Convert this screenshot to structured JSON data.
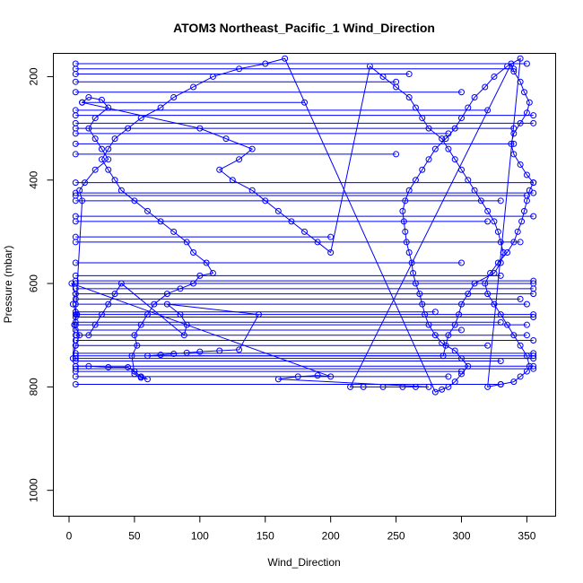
{
  "chart_data": {
    "type": "scatter",
    "title": "ATOM3 Northeast_Pacific_1 Wind_Direction",
    "xlabel": "Wind_Direction",
    "ylabel": "Pressure (mbar)",
    "xlim": [
      -12,
      372
    ],
    "ylim": [
      1050,
      155
    ],
    "y_reversed": true,
    "xticks": [
      0,
      50,
      100,
      150,
      200,
      250,
      300,
      350
    ],
    "yticks": [
      200,
      400,
      600,
      800,
      1000
    ],
    "grid": false,
    "legend": "none",
    "color": "#0000ff",
    "marker": "open-circle",
    "connected": true,
    "series": [
      {
        "values_note_omitted": "",
        "points": [
          [
            5,
            760
          ],
          [
            15,
            760
          ],
          [
            30,
            762
          ],
          [
            45,
            762
          ],
          [
            50,
            770
          ],
          [
            55,
            780
          ],
          [
            60,
            785
          ],
          [
            55,
            782
          ],
          [
            50,
            775
          ],
          [
            48,
            740
          ],
          [
            52,
            720
          ],
          [
            50,
            700
          ],
          [
            55,
            680
          ],
          [
            60,
            660
          ],
          [
            65,
            640
          ],
          [
            75,
            620
          ],
          [
            85,
            610
          ],
          [
            95,
            600
          ],
          [
            100,
            585
          ],
          [
            110,
            580
          ],
          [
            105,
            560
          ],
          [
            95,
            540
          ],
          [
            90,
            520
          ],
          [
            80,
            500
          ],
          [
            70,
            480
          ],
          [
            60,
            460
          ],
          [
            50,
            440
          ],
          [
            40,
            420
          ],
          [
            35,
            400
          ],
          [
            30,
            380
          ],
          [
            25,
            360
          ],
          [
            30,
            340
          ],
          [
            35,
            320
          ],
          [
            45,
            300
          ],
          [
            55,
            280
          ],
          [
            70,
            260
          ],
          [
            80,
            240
          ],
          [
            95,
            220
          ],
          [
            110,
            200
          ],
          [
            130,
            185
          ],
          [
            150,
            175
          ],
          [
            165,
            165
          ],
          [
            280,
            810
          ],
          [
            285,
            805
          ],
          [
            290,
            800
          ],
          [
            295,
            790
          ],
          [
            300,
            775
          ],
          [
            305,
            760
          ],
          [
            300,
            745
          ],
          [
            295,
            730
          ],
          [
            285,
            715
          ],
          [
            280,
            700
          ],
          [
            275,
            680
          ],
          [
            272,
            660
          ],
          [
            270,
            640
          ],
          [
            268,
            620
          ],
          [
            265,
            600
          ],
          [
            263,
            580
          ],
          [
            262,
            560
          ],
          [
            260,
            540
          ],
          [
            258,
            520
          ],
          [
            257,
            500
          ],
          [
            256,
            480
          ],
          [
            255,
            460
          ],
          [
            257,
            440
          ],
          [
            260,
            420
          ],
          [
            265,
            400
          ],
          [
            270,
            380
          ],
          [
            275,
            360
          ],
          [
            280,
            340
          ],
          [
            288,
            320
          ],
          [
            295,
            300
          ],
          [
            300,
            280
          ],
          [
            305,
            260
          ],
          [
            310,
            240
          ],
          [
            318,
            220
          ],
          [
            325,
            200
          ],
          [
            335,
            180
          ],
          [
            345,
            165
          ],
          [
            320,
            800
          ],
          [
            330,
            795
          ],
          [
            340,
            790
          ],
          [
            345,
            780
          ],
          [
            350,
            770
          ],
          [
            352,
            760
          ],
          [
            350,
            740
          ],
          [
            345,
            720
          ],
          [
            340,
            700
          ],
          [
            335,
            680
          ],
          [
            330,
            660
          ],
          [
            325,
            640
          ],
          [
            320,
            620
          ],
          [
            318,
            600
          ],
          [
            322,
            580
          ],
          [
            328,
            560
          ],
          [
            335,
            540
          ],
          [
            340,
            520
          ],
          [
            343,
            500
          ],
          [
            346,
            480
          ],
          [
            348,
            460
          ],
          [
            350,
            440
          ],
          [
            352,
            420
          ],
          [
            355,
            405
          ],
          [
            350,
            390
          ],
          [
            345,
            370
          ],
          [
            340,
            350
          ],
          [
            338,
            330
          ],
          [
            340,
            310
          ],
          [
            345,
            290
          ],
          [
            350,
            270
          ],
          [
            352,
            250
          ],
          [
            348,
            230
          ],
          [
            345,
            210
          ],
          [
            340,
            190
          ],
          [
            338,
            175
          ],
          [
            215,
            800
          ],
          [
            225,
            800
          ],
          [
            240,
            800
          ],
          [
            255,
            800
          ],
          [
            265,
            800
          ],
          [
            275,
            800
          ],
          [
            160,
            785
          ],
          [
            175,
            780
          ],
          [
            190,
            778
          ],
          [
            200,
            780
          ],
          [
            2,
            600
          ],
          [
            5,
            620
          ],
          [
            3,
            640
          ],
          [
            6,
            660
          ],
          [
            4,
            680
          ],
          [
            8,
            700
          ],
          [
            5,
            720
          ],
          [
            3,
            745
          ],
          [
            10,
            440
          ],
          [
            8,
            420
          ],
          [
            12,
            405
          ],
          [
            20,
            380
          ],
          [
            30,
            360
          ],
          [
            25,
            340
          ],
          [
            20,
            320
          ],
          [
            15,
            300
          ],
          [
            20,
            280
          ],
          [
            30,
            260
          ],
          [
            25,
            245
          ],
          [
            15,
            240
          ],
          [
            10,
            250
          ],
          [
            100,
            300
          ],
          [
            120,
            320
          ],
          [
            140,
            340
          ],
          [
            130,
            360
          ],
          [
            115,
            380
          ],
          [
            125,
            400
          ],
          [
            140,
            420
          ],
          [
            150,
            440
          ],
          [
            160,
            460
          ],
          [
            170,
            480
          ],
          [
            180,
            500
          ],
          [
            190,
            520
          ],
          [
            200,
            540
          ],
          [
            230,
            180
          ],
          [
            240,
            200
          ],
          [
            250,
            220
          ],
          [
            260,
            240
          ],
          [
            265,
            260
          ],
          [
            270,
            280
          ],
          [
            275,
            300
          ],
          [
            285,
            320
          ],
          [
            290,
            340
          ],
          [
            295,
            360
          ],
          [
            300,
            380
          ],
          [
            305,
            400
          ],
          [
            310,
            420
          ],
          [
            315,
            440
          ],
          [
            320,
            460
          ],
          [
            325,
            480
          ],
          [
            328,
            500
          ],
          [
            330,
            520
          ],
          [
            332,
            540
          ],
          [
            330,
            560
          ],
          [
            325,
            580
          ],
          [
            310,
            600
          ],
          [
            305,
            620
          ],
          [
            300,
            640
          ],
          [
            298,
            660
          ],
          [
            295,
            680
          ],
          [
            290,
            700
          ],
          [
            288,
            720
          ],
          [
            286,
            740
          ],
          [
            60,
            740
          ],
          [
            70,
            738
          ],
          [
            80,
            736
          ],
          [
            90,
            734
          ],
          [
            100,
            732
          ],
          [
            115,
            730
          ],
          [
            130,
            728
          ],
          [
            145,
            660
          ],
          [
            75,
            640
          ],
          [
            85,
            660
          ],
          [
            90,
            680
          ],
          [
            88,
            700
          ],
          [
            40,
            600
          ],
          [
            35,
            620
          ],
          [
            30,
            640
          ],
          [
            25,
            660
          ],
          [
            20,
            680
          ],
          [
            15,
            700
          ]
        ]
      }
    ],
    "horizontal_segments": [
      [
        5,
        760,
        355,
        760
      ],
      [
        5,
        740,
        355,
        740
      ],
      [
        5,
        770,
        300,
        770
      ],
      [
        5,
        700,
        350,
        700
      ],
      [
        5,
        680,
        350,
        680
      ],
      [
        5,
        660,
        355,
        660
      ],
      [
        5,
        640,
        350,
        640
      ],
      [
        5,
        620,
        355,
        620
      ],
      [
        5,
        600,
        355,
        600
      ],
      [
        5,
        585,
        330,
        585
      ],
      [
        5,
        520,
        345,
        520
      ],
      [
        5,
        480,
        320,
        480
      ],
      [
        5,
        470,
        355,
        470
      ],
      [
        5,
        430,
        350,
        430
      ],
      [
        5,
        405,
        355,
        405
      ],
      [
        5,
        330,
        340,
        330
      ],
      [
        5,
        310,
        290,
        310
      ],
      [
        5,
        275,
        355,
        275
      ],
      [
        5,
        265,
        320,
        265
      ],
      [
        5,
        185,
        340,
        185
      ],
      [
        5,
        175,
        350,
        175
      ],
      [
        5,
        195,
        260,
        195
      ],
      [
        10,
        250,
        180,
        250
      ],
      [
        5,
        720,
        320,
        720
      ],
      [
        5,
        690,
        300,
        690
      ],
      [
        5,
        655,
        280,
        655
      ],
      [
        5,
        560,
        300,
        560
      ],
      [
        5,
        510,
        200,
        510
      ],
      [
        5,
        440,
        330,
        440
      ],
      [
        5,
        425,
        355,
        425
      ],
      [
        5,
        350,
        250,
        350
      ],
      [
        5,
        300,
        340,
        300
      ],
      [
        5,
        290,
        355,
        290
      ],
      [
        5,
        230,
        300,
        230
      ],
      [
        5,
        210,
        250,
        210
      ],
      [
        5,
        765,
        355,
        765
      ],
      [
        5,
        780,
        290,
        780
      ],
      [
        5,
        795,
        330,
        795
      ],
      [
        5,
        745,
        355,
        745
      ],
      [
        5,
        750,
        330,
        750
      ],
      [
        5,
        735,
        355,
        735
      ],
      [
        5,
        710,
        355,
        710
      ],
      [
        5,
        675,
        330,
        675
      ],
      [
        5,
        665,
        355,
        665
      ],
      [
        5,
        630,
        345,
        630
      ],
      [
        5,
        610,
        355,
        610
      ],
      [
        5,
        595,
        355,
        595
      ]
    ]
  }
}
